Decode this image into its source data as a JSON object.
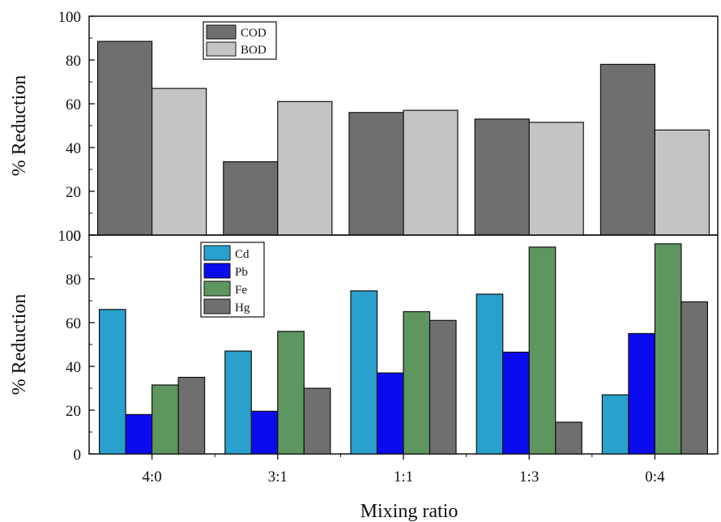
{
  "chart_data": [
    {
      "type": "bar",
      "categories": [
        "4:0",
        "3:1",
        "1:1",
        "1:3",
        "0:4"
      ],
      "ylabel": "% Reduction",
      "ylim": [
        0,
        100
      ],
      "yticks": [
        "0",
        "20",
        "40",
        "60",
        "80",
        "100"
      ],
      "legend_position": "top-left",
      "series": [
        {
          "name": "COD",
          "color": "#6f6f6f",
          "values": [
            88.5,
            33.5,
            56,
            53,
            78
          ]
        },
        {
          "name": "BOD",
          "color": "#c4c4c4",
          "values": [
            67,
            61,
            57,
            51.5,
            48
          ]
        }
      ]
    },
    {
      "type": "bar",
      "categories": [
        "4:0",
        "3:1",
        "1:1",
        "1:3",
        "0:4"
      ],
      "xlabel": "Mixing ratio",
      "ylabel": "% Reduction",
      "ylim": [
        0,
        100
      ],
      "yticks": [
        "0",
        "20",
        "40",
        "60",
        "80",
        "100"
      ],
      "legend_position": "top-left",
      "series": [
        {
          "name": "Cd",
          "color": "#2aa0cc",
          "values": [
            66,
            47,
            74.5,
            73,
            27
          ]
        },
        {
          "name": "Pb",
          "color": "#0b0bf0",
          "values": [
            18,
            19.5,
            37,
            46.5,
            55
          ]
        },
        {
          "name": "Fe",
          "color": "#5e9660",
          "values": [
            31.5,
            56,
            65,
            94.5,
            96
          ]
        },
        {
          "name": "Hg",
          "color": "#6f6f6f",
          "values": [
            35,
            30,
            61,
            14.5,
            69.5
          ]
        }
      ]
    }
  ]
}
